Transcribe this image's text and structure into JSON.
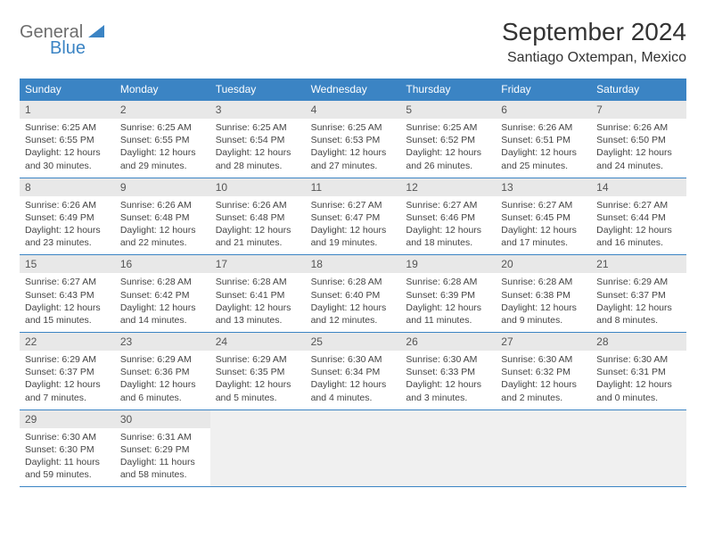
{
  "logo": {
    "text1": "General",
    "text2": "Blue"
  },
  "title": "September 2024",
  "location": "Santiago Oxtempan, Mexico",
  "colors": {
    "brand_blue": "#3b84c4",
    "header_gray": "#e8e8e8",
    "text": "#333333",
    "bg": "#ffffff"
  },
  "dayHeaders": [
    "Sunday",
    "Monday",
    "Tuesday",
    "Wednesday",
    "Thursday",
    "Friday",
    "Saturday"
  ],
  "weeks": [
    [
      {
        "n": "1",
        "sr": "Sunrise: 6:25 AM",
        "ss": "Sunset: 6:55 PM",
        "dl": "Daylight: 12 hours and 30 minutes."
      },
      {
        "n": "2",
        "sr": "Sunrise: 6:25 AM",
        "ss": "Sunset: 6:55 PM",
        "dl": "Daylight: 12 hours and 29 minutes."
      },
      {
        "n": "3",
        "sr": "Sunrise: 6:25 AM",
        "ss": "Sunset: 6:54 PM",
        "dl": "Daylight: 12 hours and 28 minutes."
      },
      {
        "n": "4",
        "sr": "Sunrise: 6:25 AM",
        "ss": "Sunset: 6:53 PM",
        "dl": "Daylight: 12 hours and 27 minutes."
      },
      {
        "n": "5",
        "sr": "Sunrise: 6:25 AM",
        "ss": "Sunset: 6:52 PM",
        "dl": "Daylight: 12 hours and 26 minutes."
      },
      {
        "n": "6",
        "sr": "Sunrise: 6:26 AM",
        "ss": "Sunset: 6:51 PM",
        "dl": "Daylight: 12 hours and 25 minutes."
      },
      {
        "n": "7",
        "sr": "Sunrise: 6:26 AM",
        "ss": "Sunset: 6:50 PM",
        "dl": "Daylight: 12 hours and 24 minutes."
      }
    ],
    [
      {
        "n": "8",
        "sr": "Sunrise: 6:26 AM",
        "ss": "Sunset: 6:49 PM",
        "dl": "Daylight: 12 hours and 23 minutes."
      },
      {
        "n": "9",
        "sr": "Sunrise: 6:26 AM",
        "ss": "Sunset: 6:48 PM",
        "dl": "Daylight: 12 hours and 22 minutes."
      },
      {
        "n": "10",
        "sr": "Sunrise: 6:26 AM",
        "ss": "Sunset: 6:48 PM",
        "dl": "Daylight: 12 hours and 21 minutes."
      },
      {
        "n": "11",
        "sr": "Sunrise: 6:27 AM",
        "ss": "Sunset: 6:47 PM",
        "dl": "Daylight: 12 hours and 19 minutes."
      },
      {
        "n": "12",
        "sr": "Sunrise: 6:27 AM",
        "ss": "Sunset: 6:46 PM",
        "dl": "Daylight: 12 hours and 18 minutes."
      },
      {
        "n": "13",
        "sr": "Sunrise: 6:27 AM",
        "ss": "Sunset: 6:45 PM",
        "dl": "Daylight: 12 hours and 17 minutes."
      },
      {
        "n": "14",
        "sr": "Sunrise: 6:27 AM",
        "ss": "Sunset: 6:44 PM",
        "dl": "Daylight: 12 hours and 16 minutes."
      }
    ],
    [
      {
        "n": "15",
        "sr": "Sunrise: 6:27 AM",
        "ss": "Sunset: 6:43 PM",
        "dl": "Daylight: 12 hours and 15 minutes."
      },
      {
        "n": "16",
        "sr": "Sunrise: 6:28 AM",
        "ss": "Sunset: 6:42 PM",
        "dl": "Daylight: 12 hours and 14 minutes."
      },
      {
        "n": "17",
        "sr": "Sunrise: 6:28 AM",
        "ss": "Sunset: 6:41 PM",
        "dl": "Daylight: 12 hours and 13 minutes."
      },
      {
        "n": "18",
        "sr": "Sunrise: 6:28 AM",
        "ss": "Sunset: 6:40 PM",
        "dl": "Daylight: 12 hours and 12 minutes."
      },
      {
        "n": "19",
        "sr": "Sunrise: 6:28 AM",
        "ss": "Sunset: 6:39 PM",
        "dl": "Daylight: 12 hours and 11 minutes."
      },
      {
        "n": "20",
        "sr": "Sunrise: 6:28 AM",
        "ss": "Sunset: 6:38 PM",
        "dl": "Daylight: 12 hours and 9 minutes."
      },
      {
        "n": "21",
        "sr": "Sunrise: 6:29 AM",
        "ss": "Sunset: 6:37 PM",
        "dl": "Daylight: 12 hours and 8 minutes."
      }
    ],
    [
      {
        "n": "22",
        "sr": "Sunrise: 6:29 AM",
        "ss": "Sunset: 6:37 PM",
        "dl": "Daylight: 12 hours and 7 minutes."
      },
      {
        "n": "23",
        "sr": "Sunrise: 6:29 AM",
        "ss": "Sunset: 6:36 PM",
        "dl": "Daylight: 12 hours and 6 minutes."
      },
      {
        "n": "24",
        "sr": "Sunrise: 6:29 AM",
        "ss": "Sunset: 6:35 PM",
        "dl": "Daylight: 12 hours and 5 minutes."
      },
      {
        "n": "25",
        "sr": "Sunrise: 6:30 AM",
        "ss": "Sunset: 6:34 PM",
        "dl": "Daylight: 12 hours and 4 minutes."
      },
      {
        "n": "26",
        "sr": "Sunrise: 6:30 AM",
        "ss": "Sunset: 6:33 PM",
        "dl": "Daylight: 12 hours and 3 minutes."
      },
      {
        "n": "27",
        "sr": "Sunrise: 6:30 AM",
        "ss": "Sunset: 6:32 PM",
        "dl": "Daylight: 12 hours and 2 minutes."
      },
      {
        "n": "28",
        "sr": "Sunrise: 6:30 AM",
        "ss": "Sunset: 6:31 PM",
        "dl": "Daylight: 12 hours and 0 minutes."
      }
    ],
    [
      {
        "n": "29",
        "sr": "Sunrise: 6:30 AM",
        "ss": "Sunset: 6:30 PM",
        "dl": "Daylight: 11 hours and 59 minutes."
      },
      {
        "n": "30",
        "sr": "Sunrise: 6:31 AM",
        "ss": "Sunset: 6:29 PM",
        "dl": "Daylight: 11 hours and 58 minutes."
      },
      null,
      null,
      null,
      null,
      null
    ]
  ]
}
